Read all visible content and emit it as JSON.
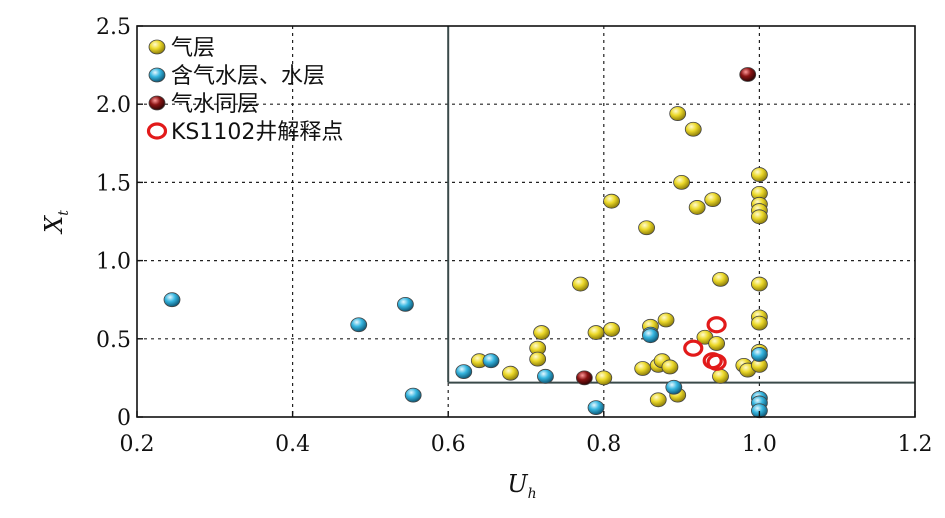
{
  "chart_data": {
    "type": "scatter",
    "xlabel": "U",
    "xlabel_sub": "h",
    "ylabel": "X",
    "ylabel_sub": "t",
    "xlim": [
      0.2,
      1.2
    ],
    "ylim": [
      0,
      2.5
    ],
    "xticks": [
      "0.2",
      "0.4",
      "0.6",
      "0.8",
      "1.0",
      "1.2"
    ],
    "yticks": [
      "0",
      "0.5",
      "1.0",
      "1.5",
      "2.0",
      "2.5"
    ],
    "grid": true,
    "grid_style": "dotted",
    "legend_position": "top-left",
    "cutoff_lines": {
      "x": 0.6,
      "y": 0.22
    },
    "series": [
      {
        "name": "气层",
        "marker": "gas-ball",
        "color": "#e6d21e",
        "points": [
          [
            0.64,
            0.36
          ],
          [
            0.68,
            0.28
          ],
          [
            0.715,
            0.44
          ],
          [
            0.715,
            0.37
          ],
          [
            0.72,
            0.54
          ],
          [
            0.77,
            0.85
          ],
          [
            0.79,
            0.54
          ],
          [
            0.8,
            0.25
          ],
          [
            0.81,
            0.56
          ],
          [
            0.81,
            1.38
          ],
          [
            0.85,
            0.31
          ],
          [
            0.855,
            1.21
          ],
          [
            0.86,
            0.58
          ],
          [
            0.87,
            0.11
          ],
          [
            0.87,
            0.33
          ],
          [
            0.875,
            0.36
          ],
          [
            0.88,
            0.62
          ],
          [
            0.885,
            0.32
          ],
          [
            0.895,
            0.14
          ],
          [
            0.895,
            1.94
          ],
          [
            0.9,
            1.5
          ],
          [
            0.915,
            1.84
          ],
          [
            0.92,
            1.34
          ],
          [
            0.93,
            0.51
          ],
          [
            0.94,
            1.39
          ],
          [
            0.945,
            0.47
          ],
          [
            0.95,
            0.26
          ],
          [
            0.95,
            0.88
          ],
          [
            0.98,
            0.33
          ],
          [
            0.985,
            0.3
          ],
          [
            1.0,
            0.85
          ],
          [
            1.0,
            0.64
          ],
          [
            1.0,
            0.6
          ],
          [
            1.0,
            0.42
          ],
          [
            1.0,
            0.33
          ],
          [
            1.0,
            1.55
          ],
          [
            1.0,
            1.43
          ],
          [
            1.0,
            1.36
          ],
          [
            1.0,
            1.32
          ],
          [
            1.0,
            1.28
          ]
        ]
      },
      {
        "name": "含气水层、水层",
        "marker": "water-ball",
        "color": "#37b8e0",
        "points": [
          [
            0.245,
            0.75
          ],
          [
            0.485,
            0.59
          ],
          [
            0.545,
            0.72
          ],
          [
            0.555,
            0.14
          ],
          [
            0.62,
            0.29
          ],
          [
            0.655,
            0.36
          ],
          [
            0.725,
            0.26
          ],
          [
            0.79,
            0.06
          ],
          [
            0.86,
            0.53
          ],
          [
            0.86,
            0.52
          ],
          [
            0.89,
            0.19
          ],
          [
            1.0,
            0.4
          ],
          [
            1.0,
            0.12
          ],
          [
            1.0,
            0.09
          ],
          [
            1.0,
            0.04
          ]
        ]
      },
      {
        "name": "气水同层",
        "marker": "mixed-ball",
        "color": "#8a1414",
        "points": [
          [
            0.775,
            0.25
          ],
          [
            0.985,
            2.19
          ]
        ]
      },
      {
        "name": "KS1102井解释点",
        "marker": "ring",
        "color": "#e21a1a",
        "points": [
          [
            0.915,
            0.44
          ],
          [
            0.945,
            0.59
          ],
          [
            0.94,
            0.36
          ],
          [
            0.945,
            0.35
          ]
        ]
      }
    ]
  }
}
